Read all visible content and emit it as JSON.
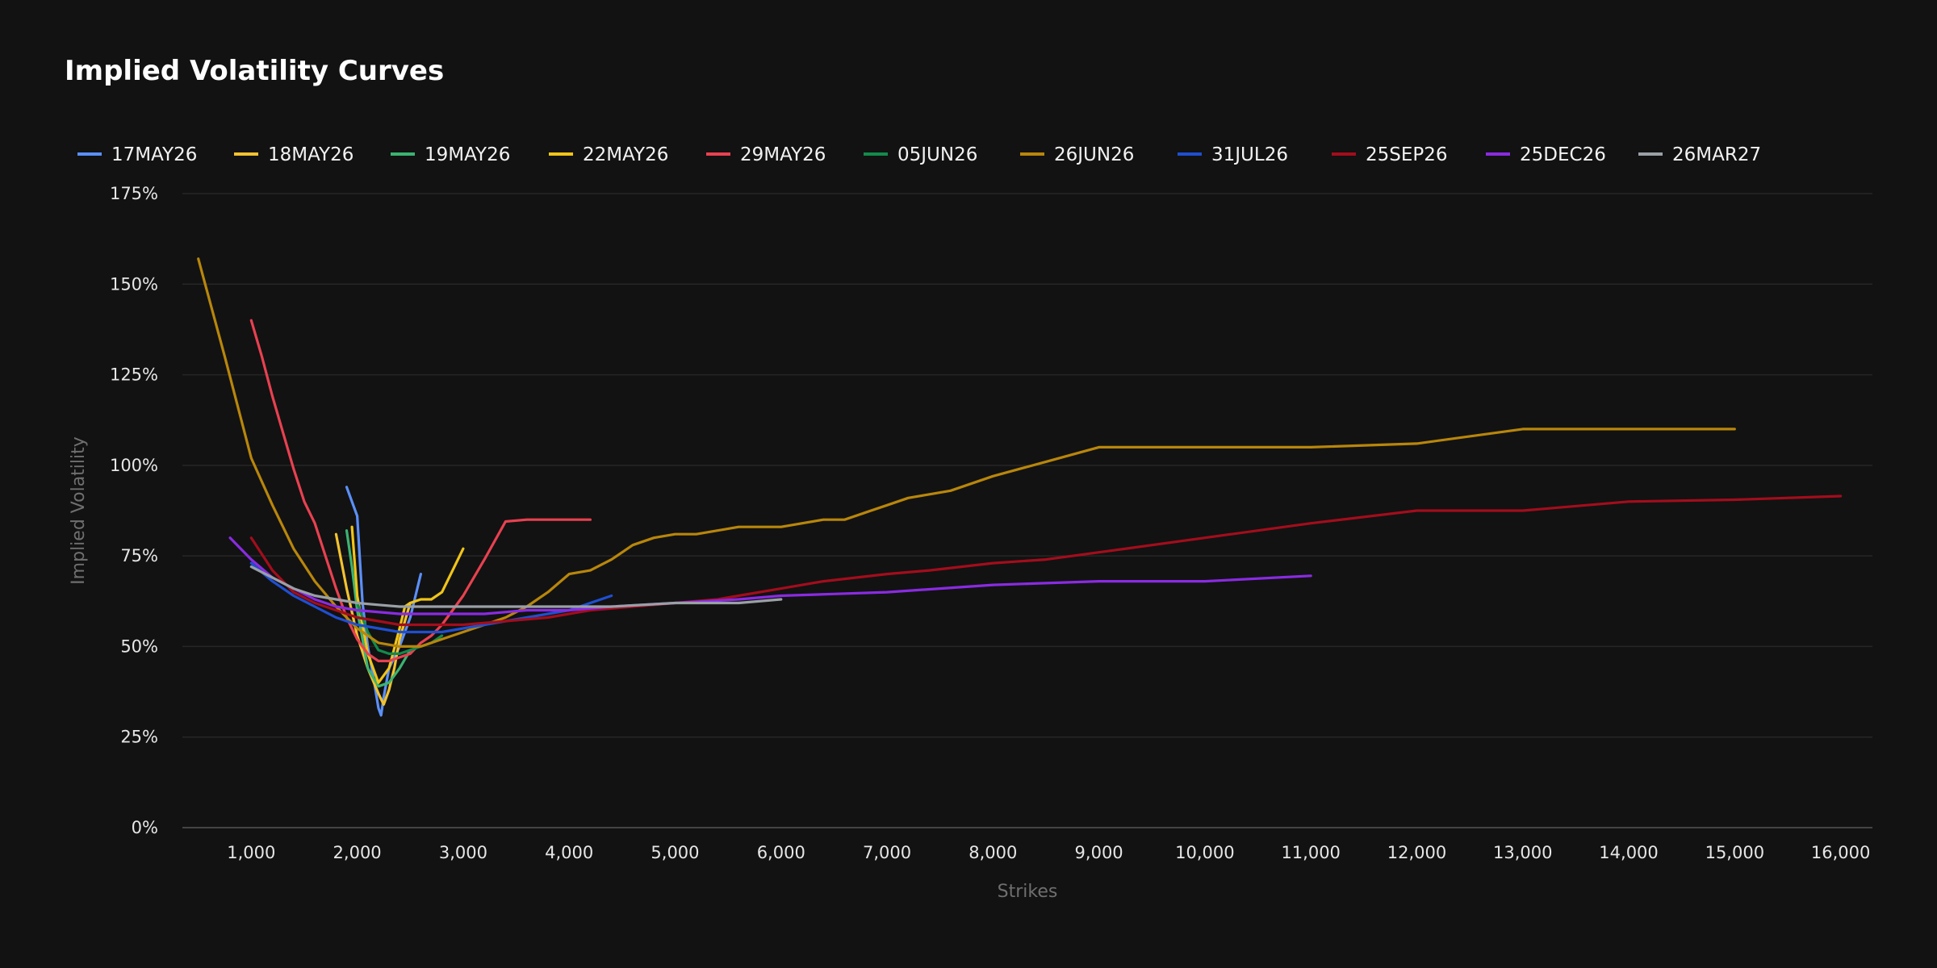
{
  "chart_data": {
    "type": "line",
    "title": "Implied Volatility Curves",
    "xlabel": "Strikes",
    "ylabel": "Implied Volatility",
    "xlim": [
      350,
      16300
    ],
    "ylim": [
      0,
      175
    ],
    "x_ticks": [
      1000,
      2000,
      3000,
      4000,
      5000,
      6000,
      7000,
      8000,
      9000,
      10000,
      11000,
      12000,
      13000,
      14000,
      15000,
      16000
    ],
    "x_tick_labels": [
      "1,000",
      "2,000",
      "3,000",
      "4,000",
      "5,000",
      "6,000",
      "7,000",
      "8,000",
      "9,000",
      "10,000",
      "11,000",
      "12,000",
      "13,000",
      "14,000",
      "15,000",
      "16,000"
    ],
    "y_ticks": [
      0,
      25,
      50,
      75,
      100,
      125,
      150,
      175
    ],
    "y_tick_labels": [
      "0%",
      "25%",
      "50%",
      "75%",
      "100%",
      "125%",
      "150%",
      "175%"
    ],
    "grid": "horizontal",
    "legend_position": "top",
    "series": [
      {
        "name": "17MAY26",
        "color": "#5b8ff9",
        "x": [
          1900,
          2000,
          2050,
          2100,
          2150,
          2200,
          2225,
          2250,
          2300,
          2400,
          2500,
          2600
        ],
        "y": [
          94,
          86,
          62,
          50,
          42,
          33,
          31,
          36,
          44,
          50,
          58,
          70
        ]
      },
      {
        "name": "18MAY26",
        "color": "#f2c230",
        "x": [
          1800,
          1900,
          2000,
          2100,
          2200,
          2250,
          2300,
          2350,
          2400,
          2500
        ],
        "y": [
          81,
          66,
          53,
          44,
          37,
          34,
          38,
          44,
          52,
          62
        ]
      },
      {
        "name": "19MAY26",
        "color": "#3cb371",
        "x": [
          1900,
          1950,
          2000,
          2050,
          2100,
          2200,
          2300,
          2400,
          2500
        ],
        "y": [
          82,
          72,
          60,
          52,
          44,
          39,
          40,
          44,
          49
        ]
      },
      {
        "name": "22MAY26",
        "color": "#f0c419",
        "x": [
          1950,
          2000,
          2100,
          2200,
          2300,
          2400,
          2450,
          2500,
          2600,
          2700,
          2800,
          2900,
          3000
        ],
        "y": [
          83,
          64,
          48,
          40,
          44,
          55,
          61,
          62,
          63,
          63,
          65,
          71,
          77
        ]
      },
      {
        "name": "29MAY26",
        "color": "#e84150",
        "x": [
          1000,
          1100,
          1200,
          1300,
          1400,
          1500,
          1600,
          1700,
          1800,
          1900,
          2000,
          2100,
          2200,
          2300,
          2400,
          2500,
          2600,
          2700,
          2800,
          2900,
          3000,
          3200,
          3400,
          3600,
          3800,
          4000,
          4200
        ],
        "y": [
          140,
          130,
          119,
          109,
          99,
          90,
          84,
          75,
          66,
          58,
          52,
          48,
          46,
          46,
          47,
          48,
          51,
          53,
          56,
          60,
          64,
          74,
          84.5,
          85,
          85,
          85,
          85
        ]
      },
      {
        "name": "05JUN26",
        "color": "#138a4b",
        "x": [
          2000,
          2100,
          2200,
          2300,
          2400,
          2500,
          2600,
          2700,
          2800
        ],
        "y": [
          62,
          54,
          49,
          48,
          48,
          49,
          50,
          51,
          53
        ]
      },
      {
        "name": "26JUN26",
        "color": "#b8860b",
        "x": [
          500,
          750,
          1000,
          1200,
          1400,
          1600,
          1800,
          2000,
          2200,
          2400,
          2600,
          2800,
          3000,
          3200,
          3400,
          3600,
          3800,
          4000,
          4200,
          4400,
          4600,
          4800,
          5000,
          5200,
          5400,
          5600,
          6000,
          6200,
          6400,
          6600,
          6800,
          7000,
          7200,
          7400,
          7600,
          8000,
          8500,
          9000,
          10000,
          11000,
          12000,
          13000,
          14000,
          15000
        ],
        "y": [
          157,
          130,
          102,
          89,
          77,
          68,
          61,
          55,
          51,
          50,
          50,
          52,
          54,
          56,
          58,
          61,
          65,
          70,
          71,
          74,
          78,
          80,
          81,
          81,
          82,
          83,
          83,
          84,
          85,
          85,
          87,
          89,
          91,
          92,
          93,
          97,
          101,
          105,
          105,
          105,
          106,
          110,
          110,
          110
        ]
      },
      {
        "name": "31JUL26",
        "color": "#1f4fd1",
        "x": [
          1000,
          1200,
          1400,
          1600,
          1800,
          2000,
          2200,
          2400,
          2600,
          2800,
          3000,
          3200,
          3400,
          3600,
          3800,
          4000,
          4200,
          4400
        ],
        "y": [
          73,
          68,
          64,
          61,
          58,
          56,
          55,
          54,
          54,
          54,
          55,
          56,
          57,
          58,
          59,
          60,
          62,
          64
        ]
      },
      {
        "name": "25SEP26",
        "color": "#a30d1c",
        "x": [
          1000,
          1200,
          1400,
          1600,
          1800,
          2000,
          2200,
          2400,
          2600,
          2800,
          3000,
          3400,
          3800,
          4200,
          4600,
          5000,
          5400,
          5600,
          6000,
          6400,
          7000,
          7400,
          8000,
          8500,
          9000,
          10000,
          11000,
          12000,
          13000,
          14000,
          15000,
          16000
        ],
        "y": [
          80,
          71,
          65,
          62,
          60,
          58,
          57,
          56,
          56,
          56,
          56,
          57,
          58,
          60,
          61,
          62,
          63,
          64,
          66,
          68,
          70,
          71,
          73,
          74,
          76,
          80,
          84,
          87.5,
          87.5,
          90,
          90.5,
          91.5
        ]
      },
      {
        "name": "25DEC26",
        "color": "#8a2be2",
        "x": [
          800,
          1000,
          1200,
          1400,
          1600,
          1800,
          2000,
          2400,
          2800,
          3200,
          3600,
          4000,
          4400,
          5000,
          5600,
          6000,
          6500,
          7000,
          7500,
          8000,
          9000,
          10000,
          11000
        ],
        "y": [
          80,
          74,
          69,
          66,
          63,
          61,
          60,
          59,
          59,
          59,
          60,
          60,
          61,
          62,
          63,
          64,
          64.5,
          65,
          66,
          67,
          68,
          68,
          69.5
        ]
      },
      {
        "name": "26MAR27",
        "color": "#9aa0a6",
        "x": [
          1000,
          1200,
          1400,
          1600,
          1800,
          2000,
          2200,
          2400,
          2800,
          3200,
          3600,
          4000,
          4400,
          5000,
          5600,
          6000
        ],
        "y": [
          72,
          69,
          66,
          64,
          63,
          62,
          61.5,
          61,
          61,
          61,
          61,
          61,
          61,
          62,
          62,
          63
        ]
      }
    ]
  }
}
